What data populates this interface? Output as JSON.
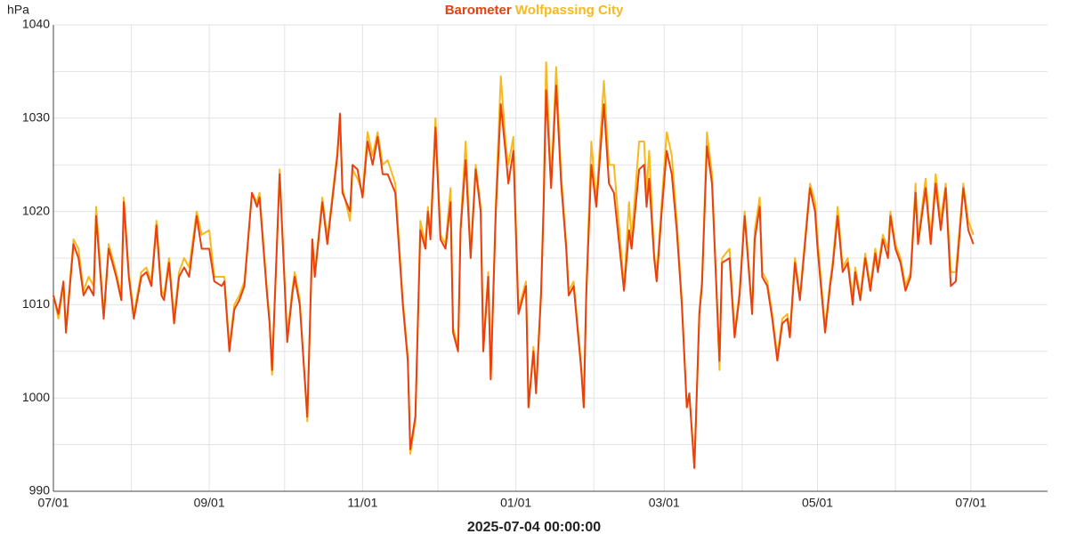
{
  "chart_data": {
    "type": "line",
    "ylabel": "hPa",
    "xlabel": "2025-07-04 00:00:00",
    "xlim": [
      0,
      395.5
    ],
    "ylim": [
      990,
      1040
    ],
    "grid": true,
    "xticks": [
      {
        "value": 0,
        "label": "07/01"
      },
      {
        "value": 31,
        "label": null
      },
      {
        "value": 62,
        "label": "09/01"
      },
      {
        "value": 92,
        "label": null
      },
      {
        "value": 123,
        "label": "11/01"
      },
      {
        "value": 153,
        "label": null
      },
      {
        "value": 184,
        "label": "01/01"
      },
      {
        "value": 215,
        "label": null
      },
      {
        "value": 243,
        "label": "03/01"
      },
      {
        "value": 274,
        "label": null
      },
      {
        "value": 304,
        "label": "05/01"
      },
      {
        "value": 335,
        "label": null
      },
      {
        "value": 365,
        "label": "07/01"
      },
      {
        "value": 396,
        "label": null
      }
    ],
    "yticks": [
      990,
      {
        "value": 995,
        "label": null
      },
      1000,
      {
        "value": 1005,
        "label": null
      },
      1010,
      {
        "value": 1015,
        "label": null
      },
      1020,
      {
        "value": 1025,
        "label": null
      },
      1030,
      {
        "value": 1035,
        "label": null
      },
      1040
    ],
    "x": [
      0,
      2,
      4,
      5,
      8,
      10,
      12,
      14,
      16,
      17,
      20,
      22,
      25,
      27,
      28,
      30,
      32,
      35,
      37,
      39,
      41,
      43,
      44,
      46,
      48,
      50,
      52,
      54,
      57,
      59,
      62,
      64,
      67,
      68,
      70,
      72,
      74,
      76,
      79,
      81,
      82,
      85,
      86,
      87,
      90,
      93,
      95,
      96,
      98,
      101,
      103,
      104,
      107,
      109,
      113,
      114,
      115,
      118,
      119,
      121,
      123,
      125,
      127,
      129,
      131,
      133,
      136,
      139,
      141,
      142,
      144,
      146,
      148,
      149,
      150,
      152,
      154,
      156,
      158,
      159,
      161,
      162,
      164,
      166,
      168,
      170,
      171,
      173,
      174,
      176,
      178,
      180,
      181,
      183,
      185,
      188,
      189,
      191,
      192,
      194,
      195,
      196,
      198,
      200,
      202,
      204,
      205,
      207,
      210,
      211,
      212,
      214,
      216,
      219,
      221,
      223,
      227,
      229,
      230,
      233,
      235,
      236,
      237,
      239,
      240,
      242,
      244,
      246,
      248,
      250,
      252,
      253,
      255,
      257,
      258,
      260,
      262,
      265,
      266,
      269,
      271,
      273,
      275,
      278,
      279,
      281,
      282,
      284,
      286,
      288,
      290,
      292,
      293,
      295,
      297,
      301,
      303,
      304,
      307,
      309,
      310,
      312,
      314,
      316,
      318,
      319,
      321,
      323,
      325,
      327,
      328,
      330,
      332,
      333,
      335,
      337,
      339,
      341,
      343,
      344,
      347,
      349,
      351,
      353,
      355,
      357,
      359,
      362,
      364,
      366
    ],
    "series": [
      {
        "name": "Barometer",
        "color": "#e8410f",
        "values": [
          1011,
          1009,
          1012.5,
          1007,
          1016.5,
          1015,
          1011,
          1012,
          1011,
          1019.5,
          1008.5,
          1016,
          1013,
          1010.5,
          1021,
          1013,
          1008.5,
          1013,
          1013.5,
          1012,
          1018.5,
          1011,
          1010.5,
          1014.5,
          1008,
          1013,
          1014,
          1013,
          1019.5,
          1016,
          1016,
          1012.5,
          1012,
          1012.5,
          1005,
          1009.5,
          1010.5,
          1012,
          1022,
          1020.5,
          1021.5,
          1011,
          1008,
          1003,
          1024,
          1006,
          1011,
          1013,
          1010,
          998,
          1017,
          1013,
          1021,
          1016.5,
          1026,
          1030.5,
          1022,
          1020,
          1025,
          1024.5,
          1021.5,
          1027.5,
          1025,
          1028,
          1024,
          1024,
          1022,
          1010,
          1004,
          994.5,
          998,
          1018,
          1016,
          1020,
          1017,
          1029,
          1017,
          1016,
          1021,
          1007,
          1005,
          1018,
          1025.5,
          1015,
          1024.5,
          1020,
          1005,
          1013,
          1002,
          1020,
          1031.5,
          1026,
          1023,
          1026.5,
          1009,
          1012,
          999,
          1005,
          1000.5,
          1011,
          1020,
          1033,
          1022.5,
          1033.5,
          1023,
          1016,
          1011,
          1012,
          1003,
          999,
          1011,
          1025,
          1020.5,
          1031.5,
          1023,
          1022,
          1011.5,
          1018,
          1016,
          1024.5,
          1025,
          1020.5,
          1023.5,
          1015,
          1012.5,
          1020,
          1026.5,
          1024,
          1018,
          1010,
          999,
          1000.5,
          992.5,
          1009,
          1012,
          1027,
          1023,
          1004,
          1014.5,
          1015,
          1006.5,
          1011,
          1019.5,
          1009,
          1017,
          1020.5,
          1013,
          1012,
          1008.5,
          1004,
          1008,
          1008.5,
          1006.5,
          1014.5,
          1010.5,
          1022.5,
          1020,
          1016,
          1007,
          1012,
          1014,
          1019.5,
          1013.5,
          1014.5,
          1010,
          1013.5,
          1010.5,
          1015,
          1011.5,
          1015.5,
          1013.5,
          1017,
          1015,
          1019.5,
          1016,
          1014.5,
          1011.5,
          1013,
          1022,
          1016.5,
          1022.5,
          1016.5,
          1023,
          1018,
          1022.5,
          1012,
          1012.5,
          1022.5,
          1018,
          1016.5
        ]
      },
      {
        "name": "Wolfpassing City",
        "color": "#f7b91c",
        "values": [
          1011,
          1008.5,
          1012,
          1007.5,
          1017,
          1016,
          1011.5,
          1013,
          1012,
          1020.5,
          1009,
          1016.5,
          1013.5,
          1011,
          1021.5,
          1013.5,
          1009,
          1013.5,
          1014,
          1012.5,
          1019,
          1011.5,
          1011,
          1015,
          1008.5,
          1013.5,
          1015,
          1014,
          1020,
          1017.5,
          1018,
          1013,
          1013,
          1013,
          1005.5,
          1010,
          1011,
          1012.5,
          1022,
          1021,
          1022,
          1011.5,
          1008.5,
          1002.5,
          1024.5,
          1006.5,
          1011.5,
          1013.5,
          1010.5,
          997.5,
          1017,
          1013.5,
          1021.5,
          1017,
          1026.5,
          1030,
          1022.5,
          1019,
          1024.5,
          1023.5,
          1022,
          1028.5,
          1026,
          1028.5,
          1025,
          1025.5,
          1023,
          1010.5,
          1004.5,
          994,
          997.5,
          1019,
          1016.5,
          1020.5,
          1017.5,
          1030,
          1017.5,
          1016.5,
          1022.5,
          1007.5,
          1005.5,
          1018.5,
          1027.5,
          1015.5,
          1025,
          1020.5,
          1005.5,
          1013.5,
          1002,
          1021,
          1034.5,
          1027,
          1025,
          1028,
          1009.5,
          1012.5,
          999,
          1005.5,
          1001,
          1011.5,
          1021,
          1036,
          1023,
          1035.5,
          1024,
          1016.5,
          1011.5,
          1012.5,
          1003.5,
          999,
          1011.5,
          1027.5,
          1021,
          1034,
          1025,
          1025,
          1012,
          1021,
          1017,
          1027.5,
          1027.5,
          1022,
          1026.5,
          1015.5,
          1013,
          1021,
          1028.5,
          1026,
          1019,
          1010.5,
          999,
          1000.5,
          992.5,
          1009.5,
          1012.5,
          1028.5,
          1024,
          1003,
          1015,
          1016,
          1007,
          1011.5,
          1020,
          1009.5,
          1018,
          1021.5,
          1013.5,
          1012.5,
          1009,
          1004.5,
          1008.5,
          1009,
          1007,
          1015,
          1011,
          1023,
          1021,
          1017,
          1007.5,
          1012.5,
          1014.5,
          1020.5,
          1014,
          1015,
          1010.5,
          1014,
          1011,
          1015.5,
          1012,
          1016,
          1014,
          1017.5,
          1016,
          1020,
          1016.5,
          1015,
          1012,
          1013.5,
          1023,
          1017,
          1023.5,
          1017,
          1024,
          1019,
          1023,
          1013.5,
          1013.5,
          1023,
          1019,
          1017.5
        ]
      }
    ]
  }
}
